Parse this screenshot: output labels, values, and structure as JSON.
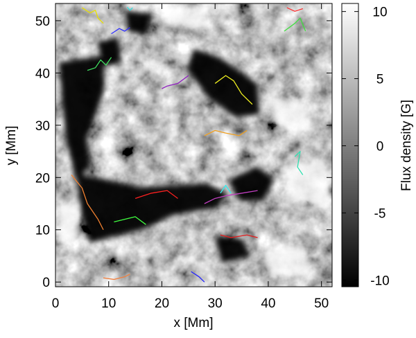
{
  "chart_data": {
    "type": "image",
    "x_label": "x [Mm]",
    "y_label": "y [Mm]",
    "xlim": [
      0,
      52
    ],
    "ylim": [
      -0.9,
      53.3
    ],
    "xticks": [
      0,
      10,
      20,
      30,
      40,
      50
    ],
    "yticks": [
      0,
      10,
      20,
      30,
      40,
      50
    ],
    "colorbar": {
      "label": "Flux density [G]",
      "lim": [
        -10.5,
        10.6
      ],
      "ticks": [
        -10,
        -5,
        0,
        5,
        10
      ],
      "colors": [
        "#000000",
        "#ffffff"
      ]
    },
    "series": [
      {
        "color": "#e8e000",
        "x": [
          5,
          6.5,
          7.5,
          8,
          9
        ],
        "y": [
          52.5,
          51.5,
          52,
          50.5,
          49.5
        ]
      },
      {
        "color": "#30e0e0",
        "x": [
          13.5,
          14,
          14.5
        ],
        "y": [
          52.6,
          52,
          52.5
        ]
      },
      {
        "color": "#3030ff",
        "x": [
          10.5,
          12,
          13,
          14
        ],
        "y": [
          47.5,
          48.5,
          48,
          48.7
        ]
      },
      {
        "color": "#40e060",
        "x": [
          6,
          7.5,
          8.5,
          9.5,
          10.5
        ],
        "y": [
          40.5,
          41,
          42.5,
          41.5,
          43
        ]
      },
      {
        "color": "#9020c0",
        "x": [
          20,
          21,
          23,
          25
        ],
        "y": [
          37,
          37.5,
          38,
          39.5
        ]
      },
      {
        "color": "#f0f020",
        "x": [
          30,
          32,
          33.5,
          35,
          37
        ],
        "y": [
          38,
          39.5,
          38.5,
          36,
          34
        ]
      },
      {
        "color": "#f0a020",
        "x": [
          28,
          30,
          32,
          34.5,
          36
        ],
        "y": [
          28,
          29,
          28.5,
          28,
          29
        ]
      },
      {
        "color": "#30e0b0",
        "x": [
          45,
          46,
          45.5,
          46.5
        ],
        "y": [
          24,
          25,
          22,
          20.5
        ]
      },
      {
        "color": "#f08030",
        "x": [
          3,
          5,
          6,
          8,
          9
        ],
        "y": [
          20.5,
          18,
          15,
          12,
          10
        ]
      },
      {
        "color": "#ff2020",
        "x": [
          15,
          18,
          21,
          23
        ],
        "y": [
          16,
          17,
          17.5,
          16
        ]
      },
      {
        "color": "#40ff40",
        "x": [
          11,
          13,
          15,
          17
        ],
        "y": [
          11.5,
          12,
          12.5,
          11
        ]
      },
      {
        "color": "#e02020",
        "x": [
          31,
          33,
          36,
          38
        ],
        "y": [
          9,
          8.5,
          9,
          8.5
        ]
      },
      {
        "color": "#f08040",
        "x": [
          9,
          11,
          13,
          14
        ],
        "y": [
          0.8,
          0.5,
          1,
          1.5
        ]
      },
      {
        "color": "#2020ff",
        "x": [
          25.5,
          27,
          28
        ],
        "y": [
          2,
          1,
          0
        ]
      },
      {
        "color": "#40e040",
        "x": [
          43,
          45,
          46,
          47
        ],
        "y": [
          48,
          49.5,
          50.5,
          48
        ]
      },
      {
        "color": "#ff3030",
        "x": [
          43.5,
          45,
          46.5
        ],
        "y": [
          52.5,
          51.8,
          52.3
        ]
      },
      {
        "color": "#30f0f0",
        "x": [
          31,
          32,
          33
        ],
        "y": [
          17,
          18.5,
          17
        ]
      },
      {
        "color": "#c040c0",
        "x": [
          28,
          30,
          32,
          35,
          38
        ],
        "y": [
          15,
          16,
          16.5,
          17,
          17.5
        ]
      }
    ]
  }
}
